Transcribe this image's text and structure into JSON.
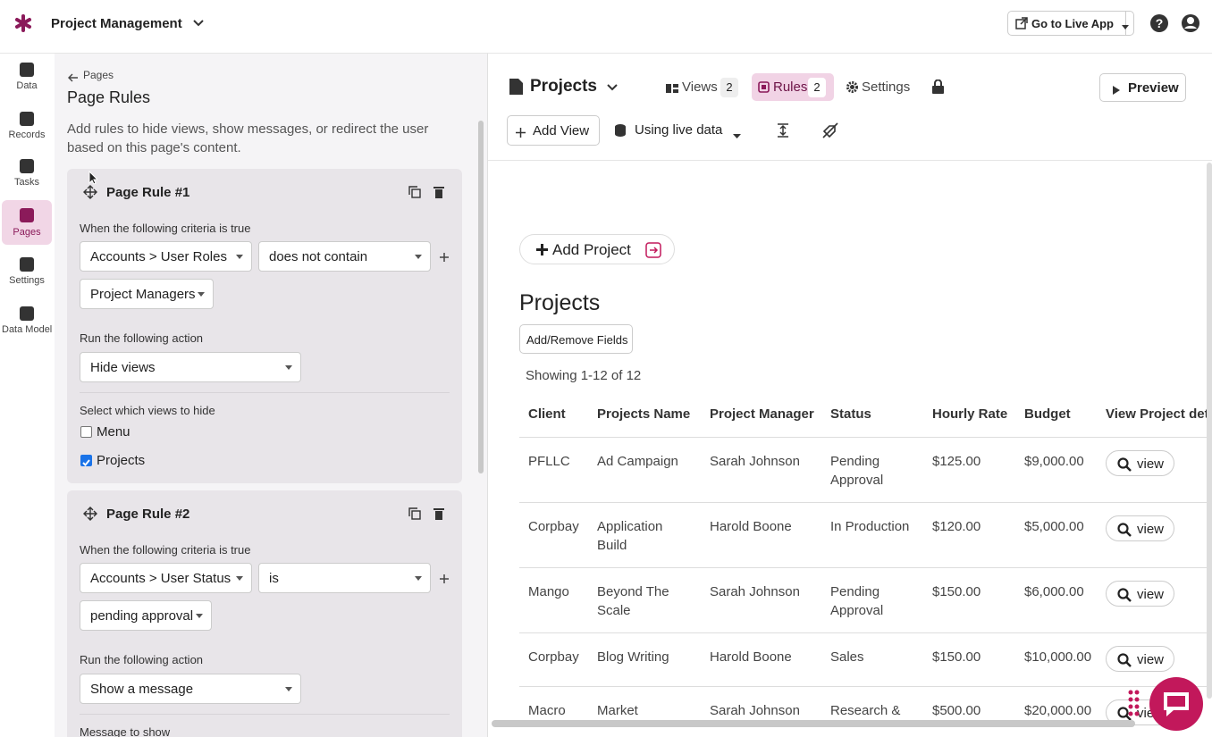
{
  "app": {
    "title": "Project Management",
    "go_live": "Go to Live App"
  },
  "nav": [
    {
      "label": "Data"
    },
    {
      "label": "Records"
    },
    {
      "label": "Tasks"
    },
    {
      "label": "Pages",
      "active": true
    },
    {
      "label": "Settings"
    },
    {
      "label": "Data Model"
    }
  ],
  "rules_panel": {
    "back": "Pages",
    "title": "Page Rules",
    "description": "Add rules to hide views, show messages, or redirect the user based on this page's content.",
    "rules": [
      {
        "title": "Page Rule #1",
        "criteria_label": "When the following criteria is true",
        "field": "Accounts > User Roles",
        "operator": "does not contain",
        "value": "Project Managers",
        "action_label": "Run the following action",
        "action": "Hide views",
        "views_label": "Select which views to hide",
        "views": [
          {
            "name": "Menu",
            "checked": false
          },
          {
            "name": "Projects",
            "checked": true
          }
        ]
      },
      {
        "title": "Page Rule #2",
        "criteria_label": "When the following criteria is true",
        "field": "Accounts > User Status",
        "operator": "is",
        "value": "pending approval",
        "action_label": "Run the following action",
        "action": "Show a message",
        "message_label": "Message to show"
      }
    ]
  },
  "toolbar": {
    "page_name": "Projects",
    "views": "Views",
    "views_count": "2",
    "rules": "Rules",
    "rules_count": "2",
    "settings": "Settings",
    "preview": "Preview",
    "add_view": "Add View",
    "live_data": "Using live data"
  },
  "preview": {
    "add_project": "Add Project",
    "heading": "Projects",
    "add_remove": "Add/Remove Fields",
    "showing": "Showing 1-12 of 12",
    "view_button": "view",
    "columns": [
      "Client",
      "Projects Name",
      "Project Manager",
      "Status",
      "Hourly Rate",
      "Budget",
      "View Project det"
    ],
    "rows": [
      [
        "PFLLC",
        "Ad Campaign",
        "Sarah Johnson",
        "Pending Approval",
        "$125.00",
        "$9,000.00"
      ],
      [
        "Corpbay",
        "Application Build",
        "Harold Boone",
        "In Production",
        "$120.00",
        "$5,000.00"
      ],
      [
        "Mango",
        "Beyond The Scale",
        "Sarah Johnson",
        "Pending Approval",
        "$150.00",
        "$6,000.00"
      ],
      [
        "Corpbay",
        "Blog Writing",
        "Harold Boone",
        "Sales",
        "$150.00",
        "$10,000.00"
      ],
      [
        "Macro",
        "Market",
        "Sarah Johnson",
        "Research &",
        "$500.00",
        "$20,000.00"
      ]
    ]
  }
}
